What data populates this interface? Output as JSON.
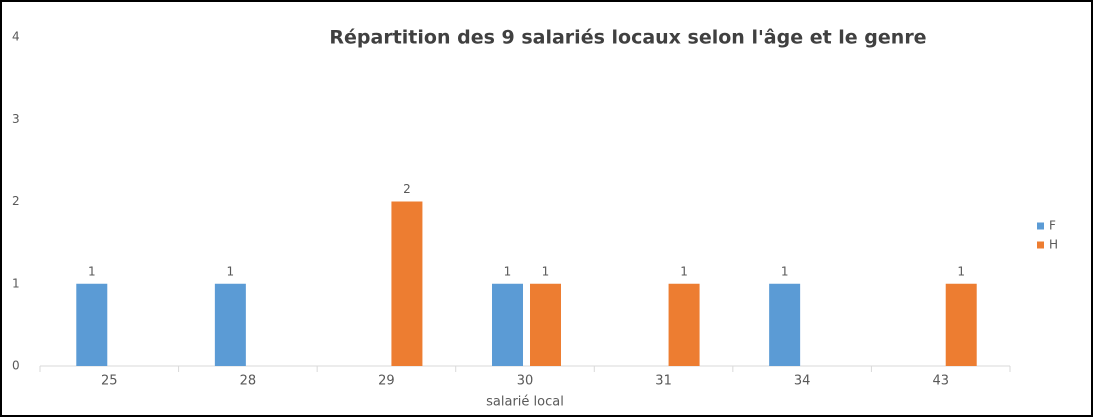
{
  "chart_data": {
    "type": "bar",
    "title": "Répartition des 9 salariés locaux selon l'âge et le genre",
    "x_label": "salarié local",
    "categories": [
      "25",
      "28",
      "29",
      "30",
      "31",
      "34",
      "43"
    ],
    "series": [
      {
        "name": "F",
        "color": "#5b9bd5",
        "values": [
          1,
          1,
          null,
          1,
          null,
          1,
          null
        ]
      },
      {
        "name": "H",
        "color": "#ed7d31",
        "values": [
          null,
          null,
          2,
          1,
          1,
          null,
          1
        ]
      }
    ],
    "ylim": [
      0,
      4
    ],
    "yticks": [
      0,
      1,
      2,
      3,
      4
    ],
    "grid": false,
    "legend": "right"
  }
}
